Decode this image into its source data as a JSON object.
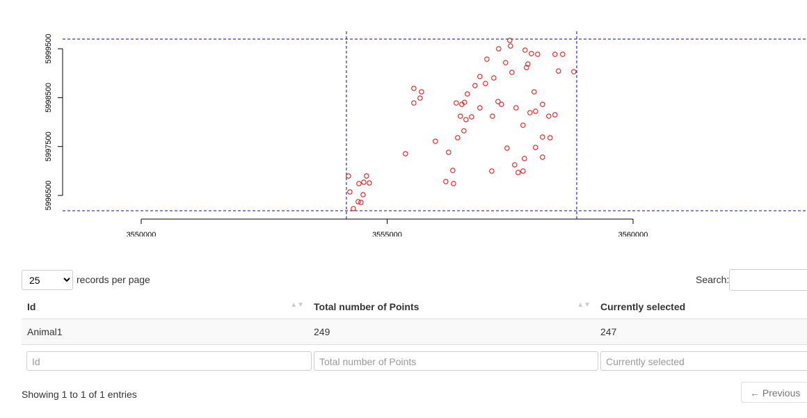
{
  "chart_data": {
    "type": "scatter",
    "color": "#ff0000",
    "selection_color": "#0000cc",
    "x": [
      3554214,
      3554242,
      3554313,
      3554412,
      3554468,
      3554426,
      3554525,
      3554581,
      3554638,
      3554511,
      3555373,
      3555543,
      3555698,
      3555670,
      3555543,
      3555981,
      3556193,
      3556250,
      3556335,
      3556349,
      3556434,
      3556561,
      3556405,
      3556519,
      3556575,
      3556490,
      3556603,
      3556717,
      3556632,
      3556787,
      3556886,
      3556999,
      3557028,
      3557169,
      3557254,
      3557325,
      3557141,
      3557127,
      3557268,
      3557409,
      3557508,
      3557494,
      3557537,
      3557621,
      3557664,
      3557763,
      3557791,
      3557763,
      3557805,
      3557862,
      3558060,
      3557989,
      3558017,
      3558159,
      3558286,
      3558413,
      3558159,
      3558017,
      3558159,
      3558314,
      3558413,
      3558569,
      3558484,
      3558795,
      3557438,
      3557904,
      3557593,
      3556886,
      3557933,
      3557834
    ],
    "y": [
      5996898,
      5996571,
      5996230,
      5996372,
      5996358,
      5996742,
      5996770,
      5996898,
      5996756,
      5996514,
      5997353,
      5998690,
      5998619,
      5998491,
      5998391,
      5997609,
      5996784,
      5997382,
      5997012,
      5996742,
      5997680,
      5997822,
      5998391,
      5998363,
      5998405,
      5998121,
      5998050,
      5998107,
      5998576,
      5998747,
      5998932,
      5998789,
      5999287,
      5998903,
      5998420,
      5998363,
      5998121,
      5996998,
      5999500,
      5999216,
      5999557,
      5999671,
      5999017,
      5998292,
      5996969,
      5996998,
      5997254,
      5997936,
      5999472,
      5999188,
      5999387,
      5998619,
      5998221,
      5998363,
      5998121,
      5998150,
      5997694,
      5997481,
      5997282,
      5997680,
      5999387,
      5999387,
      5999045,
      5999031,
      5997467,
      5998192,
      5997126,
      5998292,
      5999401,
      5999116
    ],
    "xlim": [
      3548402,
      3563536
    ],
    "ylim": [
      5996087,
      5999857
    ],
    "xticks": [
      3550000,
      3555000,
      3560000
    ],
    "yticks": [
      5996500,
      5997500,
      5998500,
      5999500
    ],
    "selection": {
      "xmin": 3554172,
      "xmax": 3558854,
      "ymin": 5996187,
      "ymax": 5999699
    }
  },
  "controls": {
    "page_length": "25",
    "page_length_label": "records per page",
    "search_label": "Search:"
  },
  "table": {
    "columns": [
      "Id",
      "Total number of Points",
      "Currently selected"
    ],
    "rows": [
      [
        "Animal1",
        "249",
        "247"
      ]
    ],
    "filters": [
      "Id",
      "Total number of Points",
      "Currently selected"
    ]
  },
  "footer": {
    "info": "Showing 1 to 1 of 1 entries",
    "previous": "← Previous"
  }
}
